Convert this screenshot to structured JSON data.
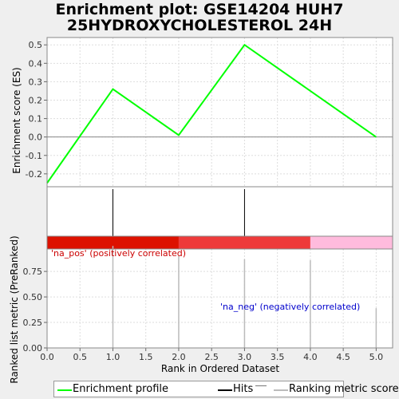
{
  "title_line1": "Enrichment plot: GSE14204 HUH7",
  "title_line2": "25HYDROXYCHOLESTEROL 24H",
  "chart_data": [
    {
      "type": "line",
      "ylabel": "Enrichment score (ES)",
      "x": [
        0,
        1,
        2,
        3,
        5
      ],
      "series": [
        {
          "name": "Enrichment profile",
          "values": [
            -0.25,
            0.26,
            0.01,
            0.5,
            0.0
          ]
        }
      ],
      "xlim": [
        0,
        5.25
      ],
      "ylim": [
        -0.27,
        0.54
      ],
      "yticks": [
        "0.5",
        "0.4",
        "0.3",
        "0.2",
        "0.1",
        "0.0",
        "-0.1",
        "-0.2"
      ],
      "ytick_values": [
        0.5,
        0.4,
        0.3,
        0.2,
        0.1,
        0.0,
        -0.1,
        -0.2
      ],
      "grid": true,
      "color": "#00ff00"
    },
    {
      "type": "bar",
      "name": "Hits",
      "hits_x": [
        1,
        3
      ],
      "color": "#000000"
    },
    {
      "type": "heatmap",
      "segments": [
        {
          "from": 0,
          "to": 2,
          "color": "#dd1100"
        },
        {
          "from": 2,
          "to": 4,
          "color": "#ee3a3a"
        },
        {
          "from": 4,
          "to": 5.25,
          "color": "#ffbbdd"
        }
      ]
    },
    {
      "type": "bar",
      "ylabel": "Ranked list metric (PreRanked)",
      "xlabel": "Rank in Ordered Dataset",
      "x": [
        1,
        2,
        3,
        4,
        5
      ],
      "values": [
        1.0,
        0.9,
        0.87,
        0.86,
        0.39
      ],
      "ylim": [
        0,
        0.97
      ],
      "yticks": [
        "0.75",
        "0.50",
        "0.25",
        "0.00"
      ],
      "ytick_values": [
        0.75,
        0.5,
        0.25,
        0.0
      ],
      "xticks": [
        "0.0",
        "0.5",
        "1.0",
        "1.5",
        "2.0",
        "2.5",
        "3.0",
        "3.5",
        "4.0",
        "4.5",
        "5.0"
      ],
      "xtick_values": [
        0,
        0.5,
        1,
        1.5,
        2,
        2.5,
        3,
        3.5,
        4,
        4.5,
        5
      ],
      "annotations": [
        {
          "text": "'na_pos' (positively correlated)",
          "color": "#cc0000"
        },
        {
          "text": "'na_neg' (negatively correlated)",
          "color": "#0000cc"
        }
      ],
      "color": "#bbbbbb"
    }
  ],
  "legend": {
    "items": [
      "Enrichment profile",
      "Hits",
      "Ranking metric scores"
    ],
    "colors": [
      "#00ff00",
      "#000000",
      "#bbbbbb"
    ]
  }
}
